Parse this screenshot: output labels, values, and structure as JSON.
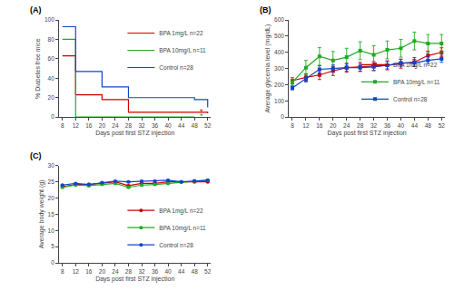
{
  "chart_data": [
    {
      "type": "step",
      "title": "(A)",
      "x_label": "Days post first STZ injection",
      "y_label": "% Diabetes free mice",
      "series": [
        {
          "name": "BPA 1mg/L n=22",
          "color": "#cc0000",
          "x": [
            8,
            12,
            16,
            20,
            24,
            28,
            32,
            36,
            40,
            44,
            48,
            52
          ],
          "values": [
            63,
            23,
            23,
            18,
            18,
            5,
            5,
            5,
            5,
            5,
            5,
            4
          ]
        },
        {
          "name": "BPA 10mg/L n=11",
          "color": "#22aa22",
          "x": [
            8,
            11,
            12,
            16,
            20,
            24,
            28,
            32,
            36,
            40,
            44,
            48
          ],
          "values": [
            80,
            80,
            0,
            0,
            0,
            0,
            0,
            0,
            0,
            0,
            0,
            0
          ]
        },
        {
          "name": "Control n=28",
          "color": "#1144cc",
          "x": [
            8,
            12,
            16,
            20,
            24,
            28,
            32,
            36,
            40,
            44,
            48,
            52
          ],
          "values": [
            93,
            47,
            47,
            31,
            31,
            20,
            20,
            20,
            20,
            20,
            18,
            10
          ]
        }
      ],
      "annotations": [
        {
          "text": "*",
          "x": 49.0,
          "y": 5.5,
          "color": "#cc0000"
        },
        {
          "text": "*",
          "x": 49.0,
          "y": 1.0,
          "color": "#22aa22"
        }
      ],
      "xlim": [
        7,
        53
      ],
      "ylim": [
        0,
        100
      ],
      "xticks": [
        8,
        12,
        16,
        20,
        24,
        28,
        32,
        36,
        40,
        44,
        48,
        52
      ],
      "yticks": [
        0,
        20,
        40,
        60,
        80,
        100
      ],
      "legend": "upper right",
      "grid": false
    },
    {
      "type": "line",
      "title": "(B)",
      "x_label": "Days post first STZ injection",
      "y_label": "Average glycemia level (mg/dL)",
      "x": [
        8,
        12,
        16,
        20,
        24,
        28,
        32,
        36,
        40,
        44,
        48,
        52
      ],
      "series": [
        {
          "name": "BPA 1mg/L n=22",
          "color": "#cc0000",
          "marker": "square",
          "values": [
            225,
            245,
            260,
            285,
            305,
            310,
            315,
            320,
            330,
            340,
            380,
            400
          ],
          "errors": [
            18,
            22,
            28,
            28,
            28,
            28,
            28,
            28,
            28,
            28,
            28,
            28
          ]
        },
        {
          "name": "BPA 10mg/L n=11",
          "color": "#22aa22",
          "marker": "square",
          "values": [
            215,
            305,
            375,
            350,
            370,
            410,
            385,
            415,
            425,
            470,
            455,
            455
          ],
          "errors": [
            18,
            45,
            55,
            55,
            55,
            55,
            55,
            55,
            55,
            55,
            55,
            55
          ]
        },
        {
          "name": "Control n=28",
          "color": "#1144cc",
          "marker": "square",
          "values": [
            180,
            235,
            295,
            300,
            305,
            305,
            310,
            320,
            335,
            335,
            350,
            360
          ],
          "errors": [
            12,
            18,
            22,
            22,
            22,
            22,
            22,
            22,
            22,
            22,
            22,
            22
          ]
        }
      ],
      "xlim": [
        7,
        53
      ],
      "ylim": [
        0,
        600
      ],
      "xticks": [
        8,
        12,
        16,
        20,
        24,
        28,
        32,
        36,
        40,
        44,
        48,
        52
      ],
      "yticks": [
        0,
        100,
        200,
        300,
        400,
        500,
        600
      ],
      "legend": "lower right",
      "grid": false
    },
    {
      "type": "line",
      "title": "(C)",
      "x_label": "Days post first STZ injection",
      "y_label": "Average body weight (g)",
      "x": [
        8,
        12,
        16,
        20,
        24,
        28,
        32,
        36,
        40,
        44,
        48,
        52
      ],
      "series": [
        {
          "name": "BPA 1mg/L n=22",
          "color": "#cc0000",
          "marker": "circle",
          "values": [
            23.5,
            24.2,
            24.2,
            24.5,
            25.0,
            23.8,
            24.5,
            24.5,
            25.0,
            25.0,
            25.0,
            25.0
          ],
          "errors": [
            0.2,
            0.2,
            0.2,
            0.2,
            0.2,
            0.2,
            0.2,
            0.2,
            0.2,
            0.2,
            0.2,
            0.2
          ]
        },
        {
          "name": "BPA 10mg/L n=11",
          "color": "#22aa22",
          "marker": "circle",
          "values": [
            23.3,
            24.0,
            23.8,
            24.2,
            24.5,
            23.3,
            24.0,
            24.2,
            24.5,
            25.0,
            25.2,
            25.5
          ],
          "errors": [
            0.2,
            0.2,
            0.2,
            0.2,
            0.2,
            0.2,
            0.2,
            0.2,
            0.2,
            0.2,
            0.2,
            0.2
          ]
        },
        {
          "name": "Control n=28",
          "color": "#1144cc",
          "marker": "circle",
          "values": [
            24.0,
            24.5,
            24.2,
            24.8,
            25.2,
            25.0,
            25.2,
            25.2,
            25.5,
            25.0,
            25.3,
            25.5
          ],
          "errors": [
            0.2,
            0.2,
            0.2,
            0.2,
            0.2,
            0.2,
            0.2,
            0.2,
            0.2,
            0.2,
            0.2,
            0.2
          ]
        }
      ],
      "xlim": [
        7,
        53
      ],
      "ylim": [
        0,
        30
      ],
      "xticks": [
        8,
        12,
        16,
        20,
        24,
        28,
        32,
        36,
        40,
        44,
        48,
        52
      ],
      "yticks": [
        0,
        5,
        10,
        15,
        20,
        25,
        30
      ],
      "legend": "lower right",
      "grid": false
    }
  ]
}
